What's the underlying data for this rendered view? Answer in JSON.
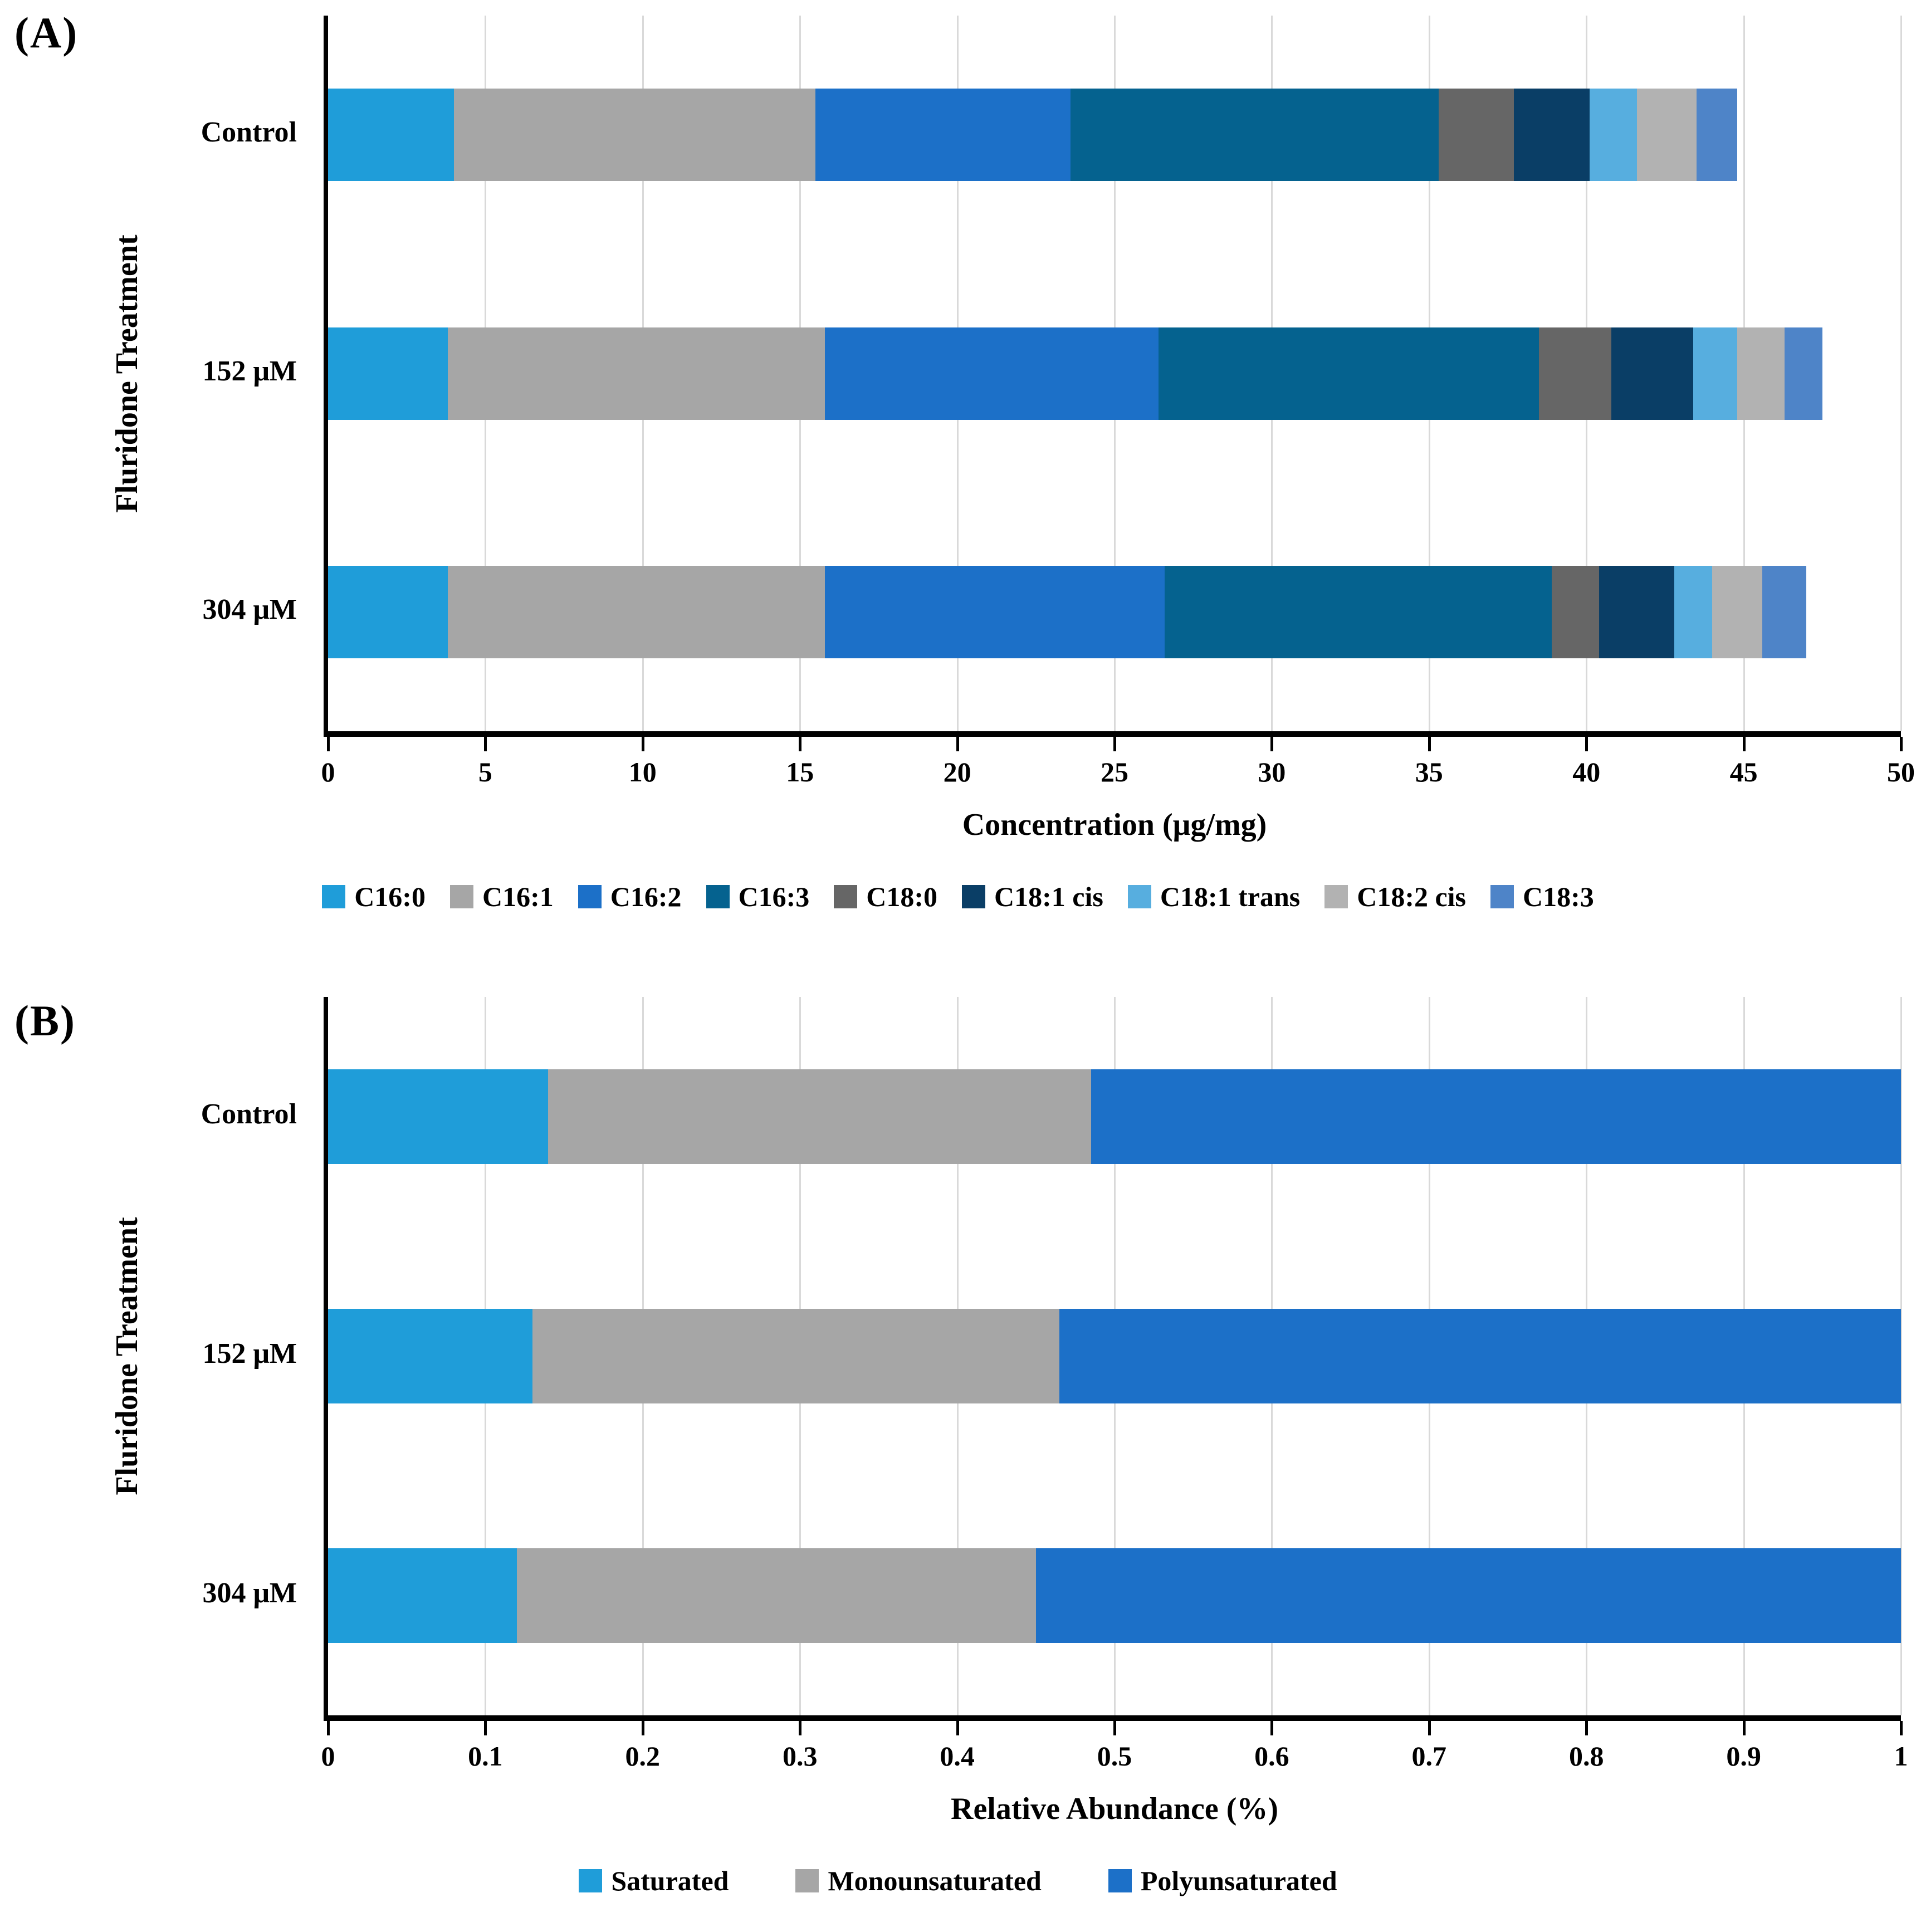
{
  "chart_data": [
    {
      "type": "bar",
      "orientation": "horizontal",
      "stacked": true,
      "panel_label": "(A)",
      "xlabel": "Concentration (μg/mg)",
      "ylabel": "Fluridone Treatment",
      "categories": [
        "Control",
        "152 μM",
        "304 μM"
      ],
      "xlim": [
        0,
        50
      ],
      "xticks": [
        0,
        5,
        10,
        15,
        20,
        25,
        30,
        35,
        40,
        45,
        50
      ],
      "grid": true,
      "legend_position": "bottom",
      "series": [
        {
          "name": "C16:0",
          "color": "#1F9DD9",
          "values": [
            4.0,
            3.8,
            3.8
          ]
        },
        {
          "name": "C16:1",
          "color": "#A6A6A6",
          "values": [
            11.5,
            12.0,
            12.0
          ]
        },
        {
          "name": "C16:2",
          "color": "#1C70C8",
          "values": [
            8.1,
            10.6,
            10.8
          ]
        },
        {
          "name": "C16:3",
          "color": "#05628F",
          "values": [
            11.7,
            12.1,
            12.3
          ]
        },
        {
          "name": "C18:0",
          "color": "#666666",
          "values": [
            2.4,
            2.3,
            1.5
          ]
        },
        {
          "name": "C18:1 cis",
          "color": "#0A3E66",
          "values": [
            2.4,
            2.6,
            2.4
          ]
        },
        {
          "name": "C18:1 trans",
          "color": "#57AEDF",
          "values": [
            1.5,
            1.4,
            1.2
          ]
        },
        {
          "name": "C18:2 cis",
          "color": "#B2B2B2",
          "values": [
            1.9,
            1.5,
            1.6
          ]
        },
        {
          "name": "C18:3",
          "color": "#4E84C8",
          "values": [
            1.3,
            1.2,
            1.4
          ]
        }
      ],
      "totals": [
        44.8,
        47.5,
        47.0
      ]
    },
    {
      "type": "bar",
      "orientation": "horizontal",
      "stacked": true,
      "panel_label": "(B)",
      "xlabel": "Relative Abundance (%)",
      "ylabel": "Fluridone Treatment",
      "categories": [
        "Control",
        "152 μM",
        "304 μM"
      ],
      "xlim": [
        0,
        1
      ],
      "xticks": [
        0,
        0.1,
        0.2,
        0.3,
        0.4,
        0.5,
        0.6,
        0.7,
        0.8,
        0.9,
        1
      ],
      "grid": true,
      "legend_position": "bottom",
      "series": [
        {
          "name": "Saturated",
          "color": "#1F9DD9",
          "values": [
            0.14,
            0.13,
            0.12
          ]
        },
        {
          "name": "Monounsaturated",
          "color": "#A6A6A6",
          "values": [
            0.345,
            0.335,
            0.33
          ]
        },
        {
          "name": "Polyunsaturated",
          "color": "#1C70C8",
          "values": [
            0.515,
            0.535,
            0.55
          ]
        }
      ],
      "totals": [
        1.0,
        1.0,
        1.0
      ]
    }
  ]
}
